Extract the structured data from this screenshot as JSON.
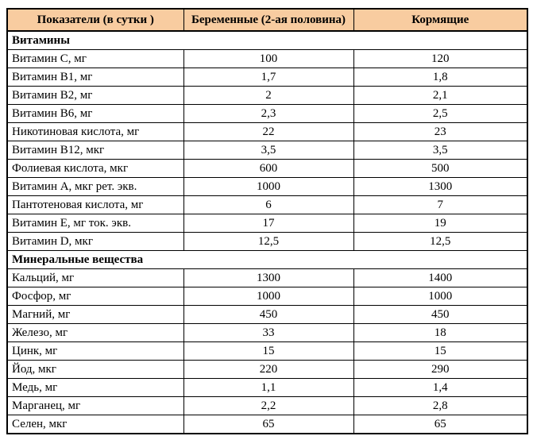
{
  "colors": {
    "header_bg": "#F8CCA0",
    "border": "#000000",
    "text": "#000000",
    "page_bg": "#FFFFFF"
  },
  "table": {
    "columns": [
      {
        "label": "Показатели (в сутки )"
      },
      {
        "label": "Беременные (2-ая половина)"
      },
      {
        "label": "Кормящие"
      }
    ],
    "sections": [
      {
        "title": "Витамины",
        "rows": [
          {
            "label": "Витамин C, мг",
            "pregnant": "100",
            "nursing": "120"
          },
          {
            "label": "Витамин B1, мг",
            "pregnant": "1,7",
            "nursing": "1,8"
          },
          {
            "label": "Витамин B2, мг",
            "pregnant": "2",
            "nursing": "2,1"
          },
          {
            "label": "Витамин B6, мг",
            "pregnant": "2,3",
            "nursing": "2,5"
          },
          {
            "label": "Никотиновая кислота, мг",
            "pregnant": "22",
            "nursing": "23"
          },
          {
            "label": "Витамин B12, мкг",
            "pregnant": "3,5",
            "nursing": "3,5"
          },
          {
            "label": "Фолиевая кислота, мкг",
            "pregnant": "600",
            "nursing": "500"
          },
          {
            "label": "Витамин A, мкг рет. экв.",
            "pregnant": "1000",
            "nursing": "1300"
          },
          {
            "label": "Пантотеновая кислота, мг",
            "pregnant": "6",
            "nursing": "7"
          },
          {
            "label": "Витамин E, мг ток. экв.",
            "pregnant": "17",
            "nursing": "19"
          },
          {
            "label": "Витамин D, мкг",
            "pregnant": "12,5",
            "nursing": "12,5"
          }
        ]
      },
      {
        "title": "Минеральные вещества",
        "rows": [
          {
            "label": "Кальций, мг",
            "pregnant": "1300",
            "nursing": "1400"
          },
          {
            "label": "Фосфор, мг",
            "pregnant": "1000",
            "nursing": "1000"
          },
          {
            "label": "Магний, мг",
            "pregnant": "450",
            "nursing": "450"
          },
          {
            "label": "Железо, мг",
            "pregnant": "33",
            "nursing": "18"
          },
          {
            "label": "Цинк, мг",
            "pregnant": "15",
            "nursing": "15"
          },
          {
            "label": "Йод, мкг",
            "pregnant": "220",
            "nursing": "290"
          },
          {
            "label": "Медь, мг",
            "pregnant": "1,1",
            "nursing": "1,4"
          },
          {
            "label": "Марганец, мг",
            "pregnant": "2,2",
            "nursing": "2,8"
          },
          {
            "label": "Селен, мкг",
            "pregnant": "65",
            "nursing": "65"
          }
        ]
      }
    ]
  }
}
